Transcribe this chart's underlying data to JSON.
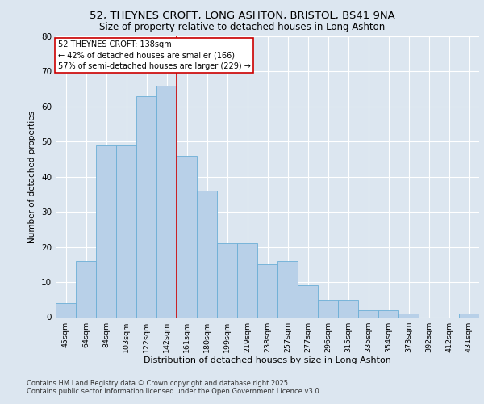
{
  "title_line1": "52, THEYNES CROFT, LONG ASHTON, BRISTOL, BS41 9NA",
  "title_line2": "Size of property relative to detached houses in Long Ashton",
  "xlabel": "Distribution of detached houses by size in Long Ashton",
  "ylabel": "Number of detached properties",
  "categories": [
    "45sqm",
    "64sqm",
    "84sqm",
    "103sqm",
    "122sqm",
    "142sqm",
    "161sqm",
    "180sqm",
    "199sqm",
    "219sqm",
    "238sqm",
    "257sqm",
    "277sqm",
    "296sqm",
    "315sqm",
    "335sqm",
    "354sqm",
    "373sqm",
    "392sqm",
    "412sqm",
    "431sqm"
  ],
  "values": [
    4,
    16,
    49,
    49,
    63,
    66,
    46,
    36,
    21,
    21,
    15,
    16,
    9,
    5,
    5,
    2,
    2,
    1,
    0,
    0,
    1
  ],
  "bar_color": "#b8d0e8",
  "bar_edge_color": "#6baed6",
  "vline_x_index": 5,
  "vline_color": "#cc0000",
  "annotation_title": "52 THEYNES CROFT: 138sqm",
  "annotation_line1": "← 42% of detached houses are smaller (166)",
  "annotation_line2": "57% of semi-detached houses are larger (229) →",
  "annotation_box_color": "#ffffff",
  "annotation_box_edge": "#cc0000",
  "ylim": [
    0,
    80
  ],
  "yticks": [
    0,
    10,
    20,
    30,
    40,
    50,
    60,
    70,
    80
  ],
  "background_color": "#dce6f0",
  "plot_background": "#dce6f0",
  "grid_color": "#ffffff",
  "footnote_line1": "Contains HM Land Registry data © Crown copyright and database right 2025.",
  "footnote_line2": "Contains public sector information licensed under the Open Government Licence v3.0."
}
